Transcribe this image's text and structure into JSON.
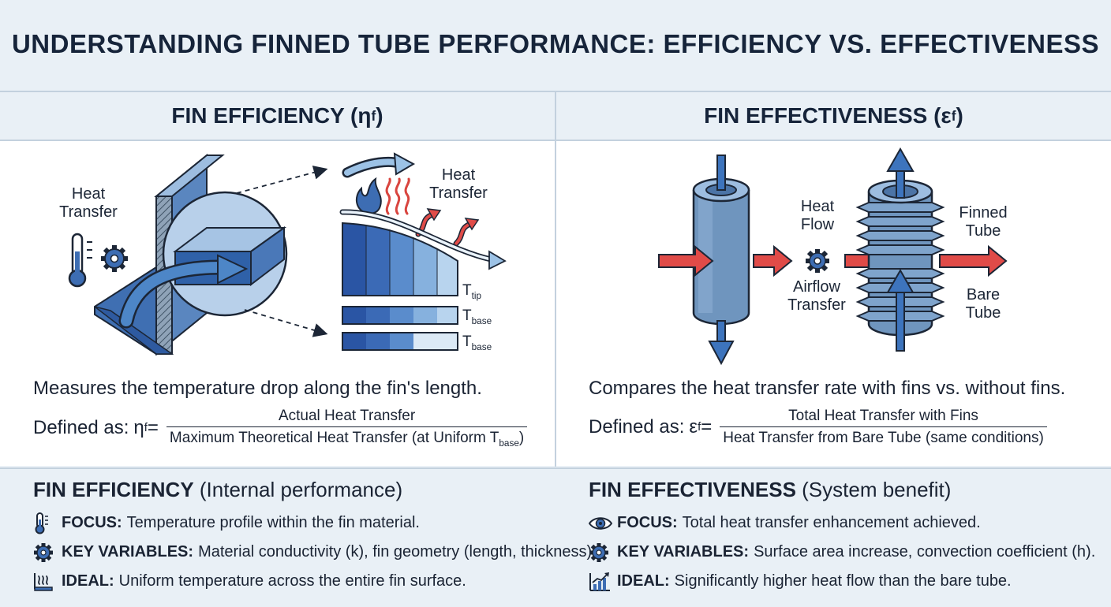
{
  "page": {
    "title": "UNDERSTANDING FINNED TUBE PERFORMANCE: EFFICIENCY VS. EFFECTIVENESS"
  },
  "efficiency": {
    "heading_text": "FIN EFFICIENCY (",
    "heading_symbol": "η",
    "heading_sub": "f",
    "heading_close": ")",
    "labels": {
      "heat_transfer_left": "Heat\nTransfer",
      "heat_transfer_right": "Heat\nTransfer",
      "t_tip": "T",
      "t_tip_sub": "tip",
      "t_base_1": "T",
      "t_base_1_sub": "base",
      "t_base_2": "T",
      "t_base_2_sub": "base"
    },
    "description": "Measures the temperature drop along the fin's length.",
    "formula": {
      "prefix": "Defined as: ",
      "symbol": "η",
      "symbol_sub": "f",
      "equals": " =",
      "numerator": "Actual Heat Transfer",
      "denominator": "Maximum Theoretical Heat Transfer (at Uniform T",
      "denominator_sub": "base",
      "denominator_close": ")"
    }
  },
  "effectiveness": {
    "heading_text": "FIN EFFECTIVENESS (",
    "heading_symbol": "ε",
    "heading_sub": "f",
    "heading_close": ")",
    "labels": {
      "heat_flow": "Heat\nFlow",
      "airflow_transfer": "Airflow\nTransfer",
      "finned_tube": "Finned\nTube",
      "bare_tube": "Bare\nTube"
    },
    "description": "Compares the heat transfer rate with fins vs. without fins.",
    "formula": {
      "prefix": "Defined as: ",
      "symbol": "ε",
      "symbol_sub": "f",
      "equals": " =",
      "numerator": "Total Heat Transfer with Fins",
      "denominator": "Heat Transfer from Bare Tube (same conditions)"
    }
  },
  "summary_efficiency": {
    "title_bold": "FIN EFFICIENCY",
    "title_rest": " (Internal performance)",
    "rows": [
      {
        "icon": "thermometer-icon",
        "key": "FOCUS:",
        "text": "Temperature profile within the fin material."
      },
      {
        "icon": "gear-icon",
        "key": "KEY VARIABLES:",
        "text": "Material conductivity (k), fin geometry (length, thickness)."
      },
      {
        "icon": "heat-waves-icon",
        "key": "IDEAL:",
        "text": "Uniform temperature across the entire fin surface."
      }
    ]
  },
  "summary_effectiveness": {
    "title_bold": "FIN EFFECTIVENESS",
    "title_rest": " (System benefit)",
    "rows": [
      {
        "icon": "eye-icon",
        "key": "FOCUS:",
        "text": "Total heat transfer enhancement achieved."
      },
      {
        "icon": "gear-icon",
        "key": "KEY VARIABLES:",
        "text": "Surface area increase, convection coefficient (h)."
      },
      {
        "icon": "chart-up-icon",
        "key": "IDEAL:",
        "text": "Significantly higher heat flow than the bare tube."
      }
    ]
  },
  "colors": {
    "dark_blue": "#2a5aa8",
    "mid_blue": "#5b8fc8",
    "light_blue": "#a9c8e6",
    "steel_blue": "#6f95be",
    "red_arrow": "#e04b48"
  }
}
